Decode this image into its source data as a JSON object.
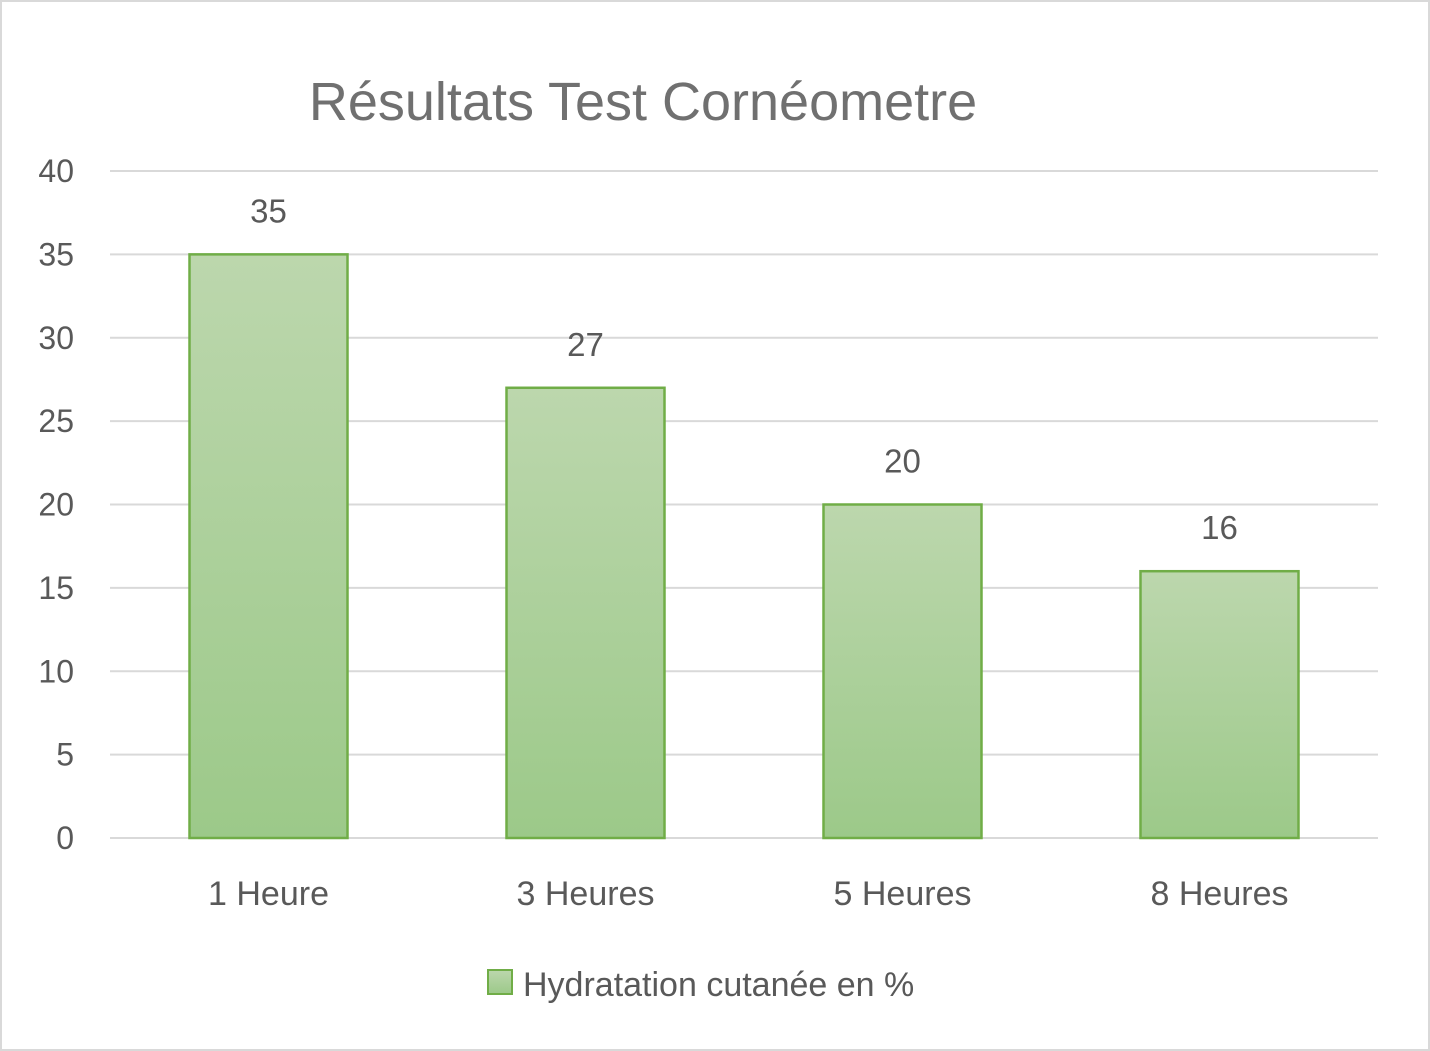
{
  "chart_data": {
    "type": "bar",
    "title": "Résultats Test Cornéometre",
    "categories": [
      "1 Heure",
      "3 Heures",
      "5 Heures",
      "8 Heures"
    ],
    "series": [
      {
        "name": "Hydratation cutanée en %",
        "values": [
          35,
          27,
          20,
          16
        ]
      }
    ],
    "data_labels": [
      "35",
      "27",
      "20",
      "16"
    ],
    "ylim": [
      0,
      40
    ],
    "y_ticks": [
      0,
      5,
      10,
      15,
      20,
      25,
      30,
      35,
      40
    ],
    "xlabel": "",
    "ylabel": "",
    "grid": true,
    "legend_position": "bottom",
    "colors": {
      "bar_fill_top": "#bcd7ad",
      "bar_fill_bottom": "#9cc989",
      "bar_stroke": "#70ad47",
      "grid": "#d9d9d9",
      "text": "#595959",
      "title": "#707070"
    }
  }
}
